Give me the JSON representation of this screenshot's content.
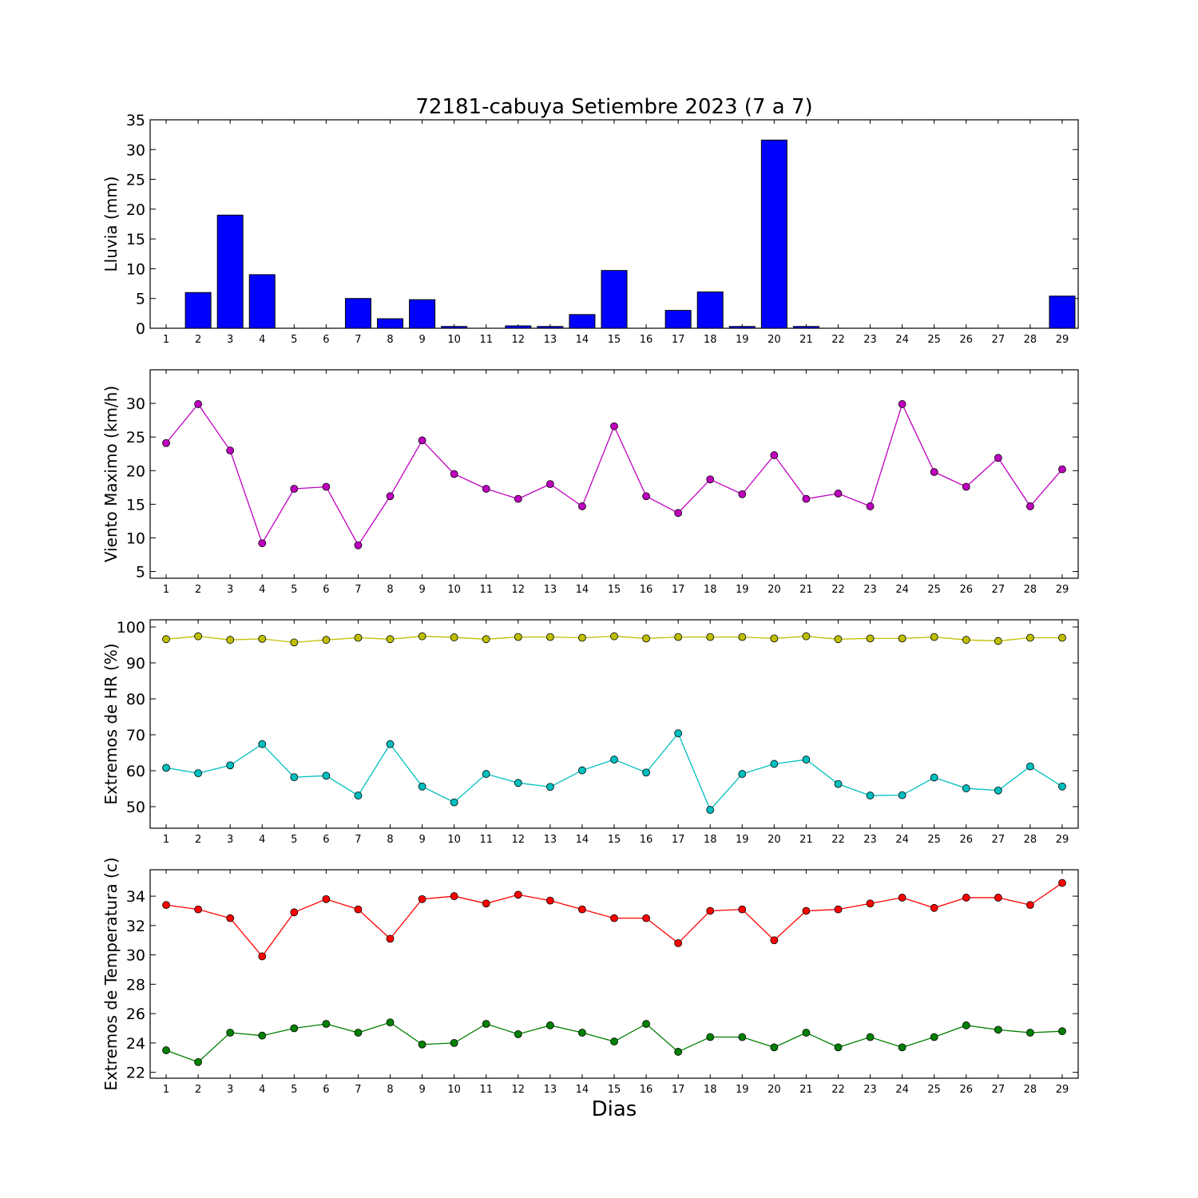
{
  "figure": {
    "title": "72181-cabuya Setiembre 2023  (7 a 7)",
    "xlabel": "Dias"
  },
  "chart_data": [
    {
      "type": "bar",
      "ylabel": "Lluvia (mm)",
      "ylim": [
        0,
        35
      ],
      "yticks": [
        0,
        5,
        10,
        15,
        20,
        25,
        30,
        35
      ],
      "categories": [
        1,
        2,
        3,
        4,
        5,
        6,
        7,
        8,
        9,
        10,
        11,
        12,
        13,
        14,
        15,
        16,
        17,
        18,
        19,
        20,
        21,
        22,
        23,
        24,
        25,
        26,
        27,
        28,
        29
      ],
      "series": [
        {
          "color": "#0000ff",
          "values": [
            0,
            6,
            19,
            9,
            0,
            0,
            5,
            1.6,
            4.8,
            0.3,
            0,
            0.4,
            0.3,
            2.3,
            9.7,
            0,
            3,
            6.1,
            0.3,
            31.6,
            0.3,
            0,
            0,
            0,
            0,
            0,
            0,
            0,
            5.4
          ]
        }
      ]
    },
    {
      "type": "line",
      "ylabel": "Viento Maximo (km/h)",
      "ylim": [
        4,
        35
      ],
      "yticks": [
        5,
        10,
        15,
        20,
        25,
        30
      ],
      "categories": [
        1,
        2,
        3,
        4,
        5,
        6,
        7,
        8,
        9,
        10,
        11,
        12,
        13,
        14,
        15,
        16,
        17,
        18,
        19,
        20,
        21,
        22,
        23,
        24,
        25,
        26,
        27,
        28,
        29
      ],
      "series": [
        {
          "color": "#bf00bf",
          "values": [
            24.1,
            29.9,
            23,
            9.2,
            17.3,
            17.6,
            8.9,
            16.2,
            24.5,
            19.5,
            17.3,
            15.8,
            18,
            14.7,
            26.6,
            16.2,
            13.7,
            18.7,
            16.5,
            22.3,
            15.8,
            16.6,
            14.7,
            29.9,
            19.8,
            17.6,
            21.9,
            14.7,
            20.2
          ]
        }
      ]
    },
    {
      "type": "line",
      "ylabel": "Extremos de HR (%)",
      "ylim": [
        44,
        102
      ],
      "yticks": [
        50,
        60,
        70,
        80,
        90,
        100
      ],
      "categories": [
        1,
        2,
        3,
        4,
        5,
        6,
        7,
        8,
        9,
        10,
        11,
        12,
        13,
        14,
        15,
        16,
        17,
        18,
        19,
        20,
        21,
        22,
        23,
        24,
        25,
        26,
        27,
        28,
        29
      ],
      "series": [
        {
          "color": "#bfbf00",
          "values": [
            96.6,
            97.4,
            96.4,
            96.7,
            95.7,
            96.4,
            97,
            96.6,
            97.4,
            97.1,
            96.6,
            97.2,
            97.2,
            97,
            97.4,
            96.8,
            97.2,
            97.2,
            97.2,
            96.8,
            97.4,
            96.6,
            96.8,
            96.8,
            97.2,
            96.4,
            96.1,
            97,
            97
          ]
        },
        {
          "color": "#00bfbf",
          "values": [
            60.8,
            59.3,
            61.5,
            67.4,
            58.2,
            58.6,
            53.1,
            67.4,
            55.6,
            51.2,
            59.1,
            56.6,
            55.5,
            60.1,
            63.1,
            59.5,
            70.4,
            49.1,
            59.1,
            61.9,
            63.1,
            56.3,
            53.1,
            53.2,
            58.1,
            55.1,
            54.5,
            61.2,
            55.6
          ]
        }
      ]
    },
    {
      "type": "line",
      "ylabel": "Extremos de Temperatura (c)",
      "ylim": [
        21.6,
        35.8
      ],
      "yticks": [
        22,
        24,
        26,
        28,
        30,
        32,
        34
      ],
      "categories": [
        1,
        2,
        3,
        4,
        5,
        6,
        7,
        8,
        9,
        10,
        11,
        12,
        13,
        14,
        15,
        16,
        17,
        18,
        19,
        20,
        21,
        22,
        23,
        24,
        25,
        26,
        27,
        28,
        29
      ],
      "series": [
        {
          "color": "#ff0000",
          "values": [
            33.4,
            33.1,
            32.5,
            29.9,
            32.9,
            33.8,
            33.1,
            31.1,
            33.8,
            34,
            33.5,
            34.1,
            33.7,
            33.1,
            32.5,
            32.5,
            30.8,
            33,
            33.1,
            31,
            33,
            33.1,
            33.5,
            33.9,
            33.2,
            33.9,
            33.9,
            33.4,
            34.9
          ]
        },
        {
          "color": "#008000",
          "values": [
            23.5,
            22.7,
            24.7,
            24.5,
            25,
            25.3,
            24.7,
            25.4,
            23.9,
            24,
            25.3,
            24.6,
            25.2,
            24.7,
            24.1,
            25.3,
            23.4,
            24.4,
            24.4,
            23.7,
            24.7,
            23.7,
            24.4,
            23.7,
            24.4,
            25.2,
            24.9,
            24.7,
            24.8
          ]
        }
      ]
    }
  ]
}
